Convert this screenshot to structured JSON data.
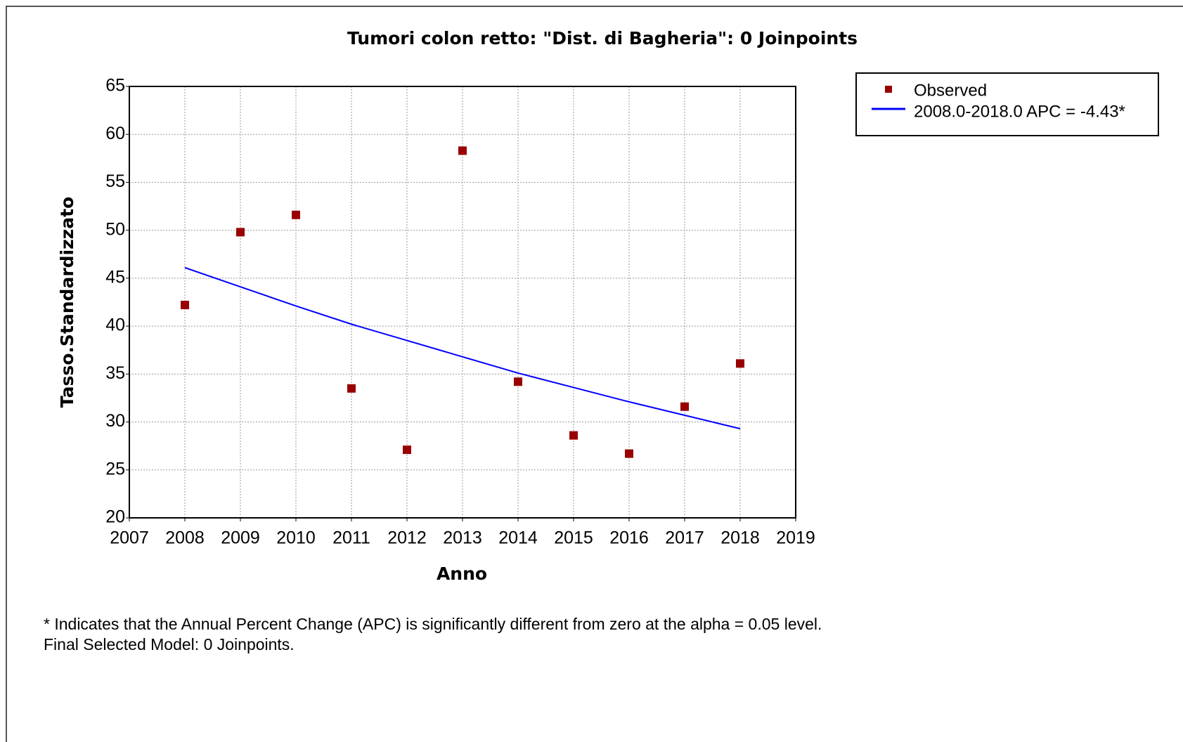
{
  "chart_data": {
    "type": "scatter",
    "title": "Tumori colon retto: \"Dist. di Bagheria\": 0 Joinpoints",
    "xlabel": "Anno",
    "ylabel": "Tasso.Standardizzato",
    "x": [
      2008,
      2009,
      2010,
      2011,
      2012,
      2013,
      2014,
      2015,
      2016,
      2017,
      2018
    ],
    "series": [
      {
        "name": "Observed",
        "color": "#990000",
        "mark": "square",
        "values": [
          42.2,
          49.8,
          51.6,
          33.5,
          27.1,
          58.3,
          34.2,
          28.6,
          26.7,
          31.6,
          36.1
        ]
      },
      {
        "name": "2008.0-2018.0 APC  = -4.43*",
        "color": "#0000ff",
        "mark": "line",
        "values": [
          46.1,
          44.1,
          42.1,
          40.2,
          38.5,
          36.8,
          35.1,
          33.6,
          32.1,
          30.7,
          29.3
        ]
      }
    ],
    "xlim": [
      2007,
      2019
    ],
    "xticks": [
      2007,
      2008,
      2009,
      2010,
      2011,
      2012,
      2013,
      2014,
      2015,
      2016,
      2017,
      2018,
      2019
    ],
    "ylim": [
      20,
      65
    ],
    "yticks": [
      20,
      25,
      30,
      35,
      40,
      45,
      50,
      55,
      60,
      65
    ],
    "grid": true,
    "legend": "upper right",
    "notes": [
      "* Indicates that the Annual Percent Change (APC) is significantly different from zero at the alpha = 0.05 level.",
      "Final Selected Model: 0 Joinpoints."
    ]
  }
}
